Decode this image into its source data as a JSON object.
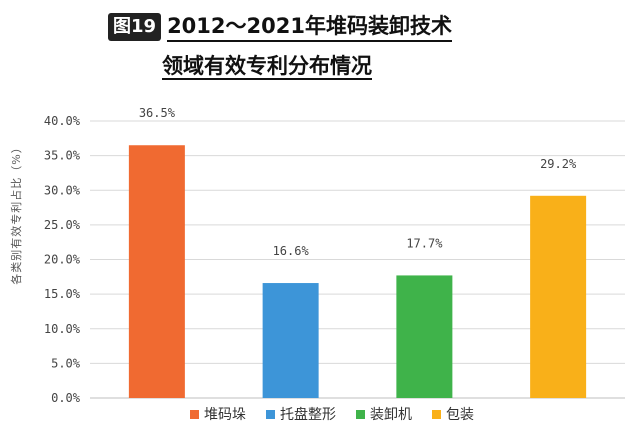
{
  "title": {
    "figure_label": "图19",
    "line1": "2012～2021年堆码装卸技术",
    "line2": "领域有效专利分布情况"
  },
  "chart_data": {
    "type": "bar",
    "categories": [
      "堆码垛",
      "托盘整形",
      "装卸机",
      "包装"
    ],
    "values": [
      36.5,
      16.6,
      17.7,
      29.2
    ],
    "value_labels": [
      "36.5%",
      "16.6%",
      "17.7%",
      "29.2%"
    ],
    "colors": [
      "#f06a31",
      "#3d95d8",
      "#3fb34a",
      "#f9b019"
    ],
    "ylabel": "各类别有效专利占比（%）",
    "ylim": [
      0,
      40
    ],
    "yticks": [
      "0.0%",
      "5.0%",
      "10.0%",
      "15.0%",
      "20.0%",
      "25.0%",
      "30.0%",
      "35.0%",
      "40.0%"
    ],
    "grid": true,
    "legend_position": "bottom"
  }
}
